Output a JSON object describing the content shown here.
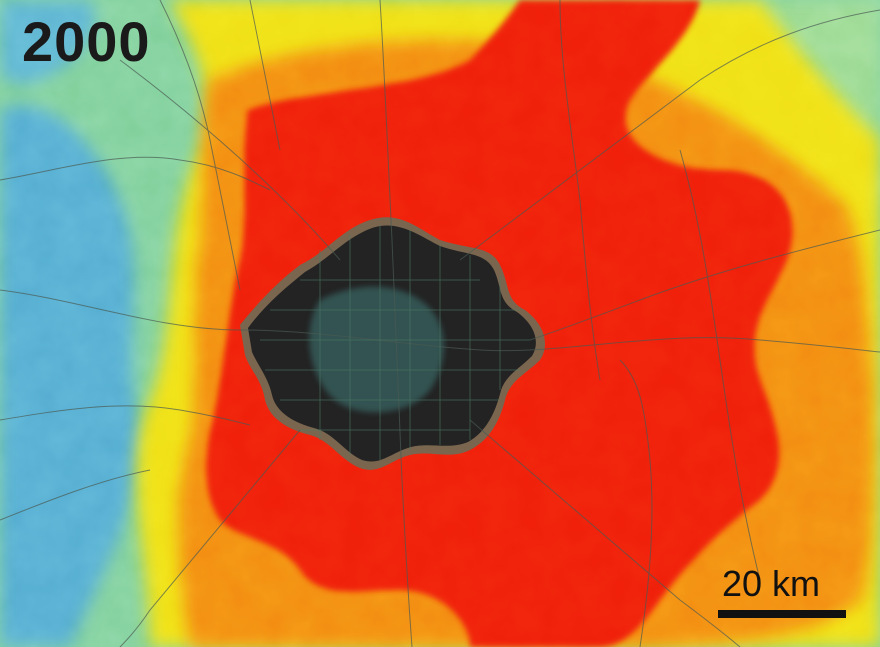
{
  "map": {
    "year_label": "2000",
    "scale_bar": {
      "label": "20 km"
    },
    "legend_colors": {
      "urban_core": "#202020",
      "very_high": "#f2260f",
      "high": "#f78a12",
      "medium": "#f5e318",
      "low": "#9fe08c",
      "very_low": "#57b4dd"
    }
  }
}
